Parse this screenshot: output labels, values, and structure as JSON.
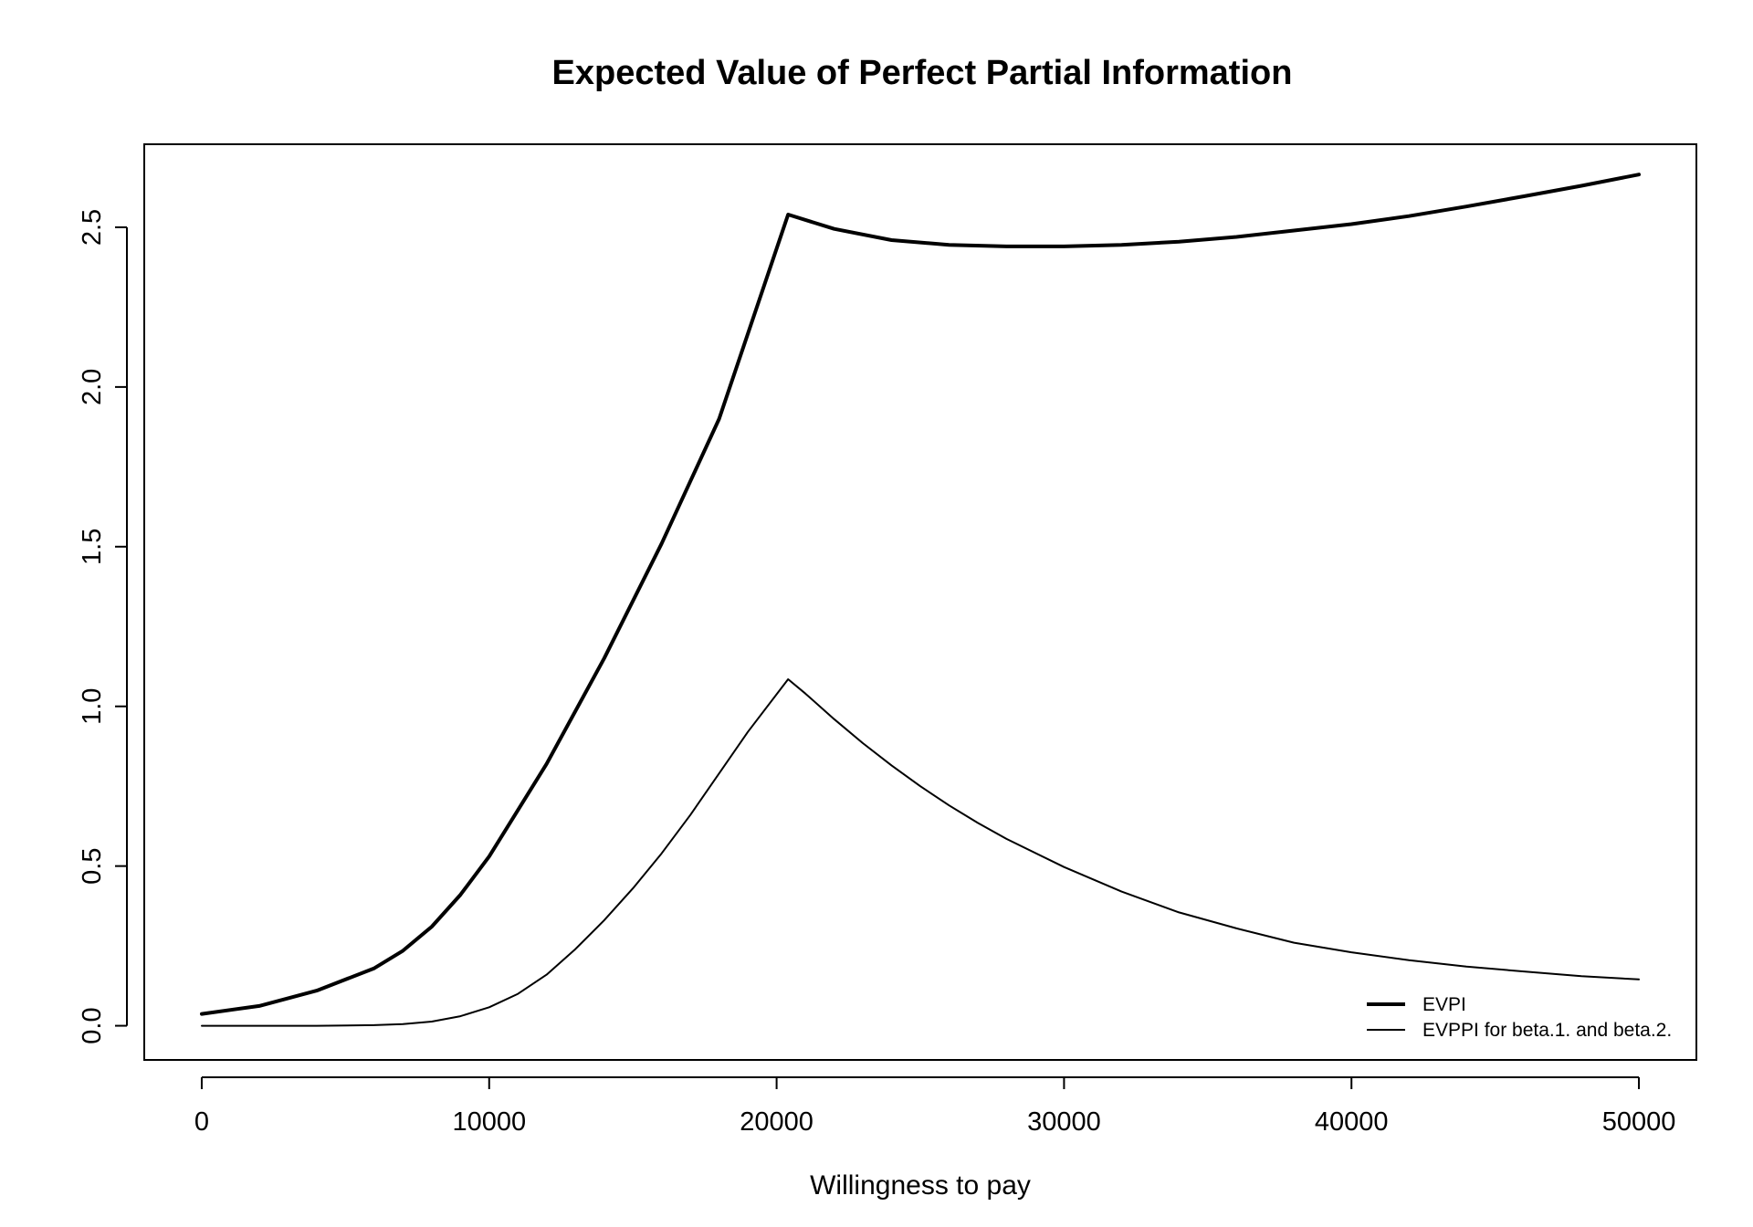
{
  "chart_data": {
    "type": "line",
    "title": "Expected Value of Perfect Partial Information",
    "xlabel": "Willingness to pay",
    "ylabel": "",
    "xlim": [
      -2000,
      52000
    ],
    "ylim": [
      -0.107,
      2.76
    ],
    "x_ticks": [
      0,
      10000,
      20000,
      30000,
      40000,
      50000
    ],
    "x_tick_labels": [
      "0",
      "10000",
      "20000",
      "30000",
      "40000",
      "50000"
    ],
    "y_ticks": [
      0.0,
      0.5,
      1.0,
      1.5,
      2.0,
      2.5
    ],
    "y_tick_labels": [
      "0.0",
      "0.5",
      "1.0",
      "1.5",
      "2.0",
      "2.5"
    ],
    "grid": false,
    "legend_position": "bottom-right",
    "series": [
      {
        "name": "EVPI",
        "line_style": "thick",
        "x": [
          0,
          2000,
          4000,
          6000,
          7000,
          8000,
          9000,
          10000,
          12000,
          14000,
          16000,
          18000,
          20400,
          22000,
          24000,
          26000,
          28000,
          30000,
          32000,
          34000,
          36000,
          38000,
          40000,
          42000,
          44000,
          46000,
          48000,
          50000
        ],
        "values": [
          0.037,
          0.062,
          0.11,
          0.18,
          0.235,
          0.31,
          0.41,
          0.53,
          0.82,
          1.15,
          1.51,
          1.9,
          2.54,
          2.495,
          2.46,
          2.445,
          2.44,
          2.44,
          2.445,
          2.455,
          2.47,
          2.49,
          2.51,
          2.535,
          2.565,
          2.597,
          2.63,
          2.665
        ]
      },
      {
        "name": "EVPPI for beta.1. and beta.2.",
        "line_style": "thin",
        "x": [
          0,
          2000,
          4000,
          6000,
          7000,
          8000,
          9000,
          10000,
          11000,
          12000,
          13000,
          14000,
          15000,
          16000,
          17000,
          18000,
          19000,
          20400,
          21000,
          22000,
          23000,
          24000,
          25000,
          26000,
          27000,
          28000,
          30000,
          32000,
          34000,
          36000,
          38000,
          40000,
          42000,
          44000,
          46000,
          48000,
          50000
        ],
        "values": [
          0.0,
          0.0,
          0.0,
          0.002,
          0.005,
          0.013,
          0.03,
          0.058,
          0.1,
          0.16,
          0.24,
          0.33,
          0.43,
          0.54,
          0.66,
          0.79,
          0.92,
          1.085,
          1.04,
          0.96,
          0.885,
          0.815,
          0.75,
          0.69,
          0.635,
          0.585,
          0.497,
          0.42,
          0.355,
          0.305,
          0.26,
          0.23,
          0.205,
          0.185,
          0.17,
          0.155,
          0.145
        ]
      }
    ]
  }
}
